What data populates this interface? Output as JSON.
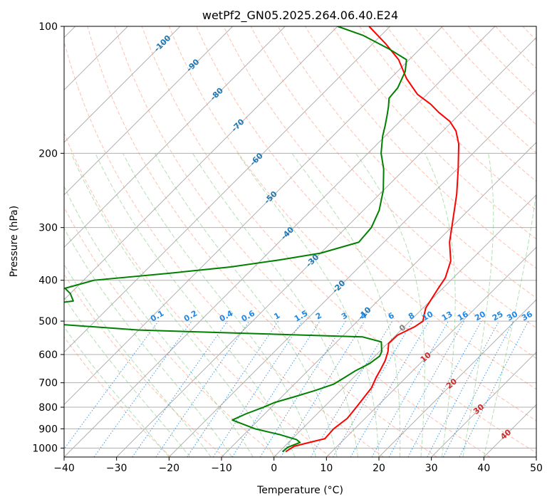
{
  "chart_data": {
    "type": "skew-t log-p",
    "title": "wetPf2_GN05.2025.264.06.40.E24",
    "xlabel": "Temperature (°C)",
    "ylabel": "Pressure (hPa)",
    "xlim": [
      -40,
      50
    ],
    "ylim": [
      1050,
      100
    ],
    "x_ticks": [
      -40,
      -30,
      -20,
      -10,
      0,
      10,
      20,
      30,
      40,
      50
    ],
    "y_ticks": [
      100,
      200,
      300,
      400,
      500,
      600,
      700,
      800,
      900,
      1000
    ],
    "grid": true,
    "isotherm_labels": [
      "-100",
      "-90",
      "-80",
      "-70",
      "-60",
      "-50",
      "-40",
      "-30",
      "-20",
      "-10"
    ],
    "isotherm_label_values": [
      -100,
      -90,
      -80,
      -70,
      -60,
      -50,
      -40,
      -30,
      -20,
      -10
    ],
    "mixing_ratio_labels": [
      "0.1",
      "0.2",
      "0.4",
      "0.6",
      "1",
      "1.5",
      "2",
      "3",
      "4",
      "6",
      "8",
      "10",
      "13",
      "16",
      "20",
      "25",
      "30",
      "36"
    ],
    "mixing_ratio_values": [
      0.1,
      0.2,
      0.4,
      0.6,
      1,
      1.5,
      2,
      3,
      4,
      6,
      8,
      10,
      13,
      16,
      20,
      25,
      30,
      36
    ],
    "mixing_ratio_label_pressure": 500,
    "warm_isotherm_labels": [
      "0",
      "10",
      "20",
      "30",
      "40"
    ],
    "warm_isotherm_label_points": [
      [
        0,
        520
      ],
      [
        10,
        610
      ],
      [
        20,
        705
      ],
      [
        30,
        810
      ],
      [
        40,
        930
      ]
    ],
    "colors": {
      "temperature": "#ff0000",
      "dewpoint": "#008000",
      "isotherm_label": "#1f77b4",
      "mixing_ratio": "#1e88e5",
      "dry_adiabat": "#ff8c69",
      "moist_adiabat": "#6bbf6b",
      "warm_label": "#d62728",
      "zero_label": "#808080"
    },
    "series": [
      {
        "name": "Temperature",
        "points": [
          [
            1.2,
            1020
          ],
          [
            1.8,
            990
          ],
          [
            4.5,
            965
          ],
          [
            6.2,
            950
          ],
          [
            6.0,
            900
          ],
          [
            6.6,
            850
          ],
          [
            6.2,
            800
          ],
          [
            5.8,
            760
          ],
          [
            5.4,
            720
          ],
          [
            4.3,
            680
          ],
          [
            3.6,
            650
          ],
          [
            2.8,
            620
          ],
          [
            1.6,
            590
          ],
          [
            0.2,
            565
          ],
          [
            0.3,
            540
          ],
          [
            2.0,
            515
          ],
          [
            2.5,
            500
          ],
          [
            1.6,
            485
          ],
          [
            0.5,
            465
          ],
          [
            -0.8,
            420
          ],
          [
            -1.5,
            395
          ],
          [
            -3.7,
            360
          ],
          [
            -7.5,
            325
          ],
          [
            -11.4,
            285
          ],
          [
            -15.3,
            250
          ],
          [
            -19.8,
            218
          ],
          [
            -24.5,
            190
          ],
          [
            -27.5,
            177
          ],
          [
            -30.5,
            168
          ],
          [
            -34.3,
            160
          ],
          [
            -37.4,
            153
          ],
          [
            -41.8,
            145
          ],
          [
            -46.9,
            133
          ],
          [
            -52.0,
            120
          ],
          [
            -57.5,
            110
          ],
          [
            -64.0,
            100
          ]
        ]
      },
      {
        "name": "Dewpoint",
        "points": [
          [
            0.6,
            1020
          ],
          [
            0.8,
            995
          ],
          [
            2.2,
            970
          ],
          [
            1.0,
            955
          ],
          [
            -3.0,
            930
          ],
          [
            -9.0,
            900
          ],
          [
            -15.0,
            858
          ],
          [
            -13.6,
            830
          ],
          [
            -11.5,
            800
          ],
          [
            -10.3,
            780
          ],
          [
            -7.5,
            755
          ],
          [
            -4.8,
            730
          ],
          [
            -2.5,
            705
          ],
          [
            -1.7,
            680
          ],
          [
            -0.9,
            655
          ],
          [
            0.4,
            630
          ],
          [
            0.9,
            605
          ],
          [
            0.4,
            590
          ],
          [
            -1.5,
            560
          ],
          [
            -6.0,
            545
          ],
          [
            -50.0,
            525
          ],
          [
            -65.0,
            510
          ],
          [
            -98.0,
            485
          ],
          [
            -95.0,
            475
          ],
          [
            -77.0,
            465
          ],
          [
            -68.0,
            448
          ],
          [
            -70.0,
            430
          ],
          [
            -72.0,
            418
          ],
          [
            -68.0,
            400
          ],
          [
            -55.0,
            385
          ],
          [
            -44.5,
            372
          ],
          [
            -36.5,
            358
          ],
          [
            -30.0,
            345
          ],
          [
            -24.8,
            325
          ],
          [
            -25.2,
            300
          ],
          [
            -27.0,
            273
          ],
          [
            -30.0,
            245
          ],
          [
            -34.0,
            218
          ],
          [
            -37.5,
            200
          ],
          [
            -40.5,
            182
          ],
          [
            -42.0,
            172
          ],
          [
            -43.7,
            162
          ],
          [
            -45.0,
            155
          ],
          [
            -46.5,
            148
          ],
          [
            -46.8,
            140
          ],
          [
            -48.5,
            128
          ],
          [
            -50.5,
            120
          ],
          [
            -56.0,
            113
          ],
          [
            -63.5,
            105
          ],
          [
            -70.0,
            100
          ]
        ]
      }
    ]
  }
}
